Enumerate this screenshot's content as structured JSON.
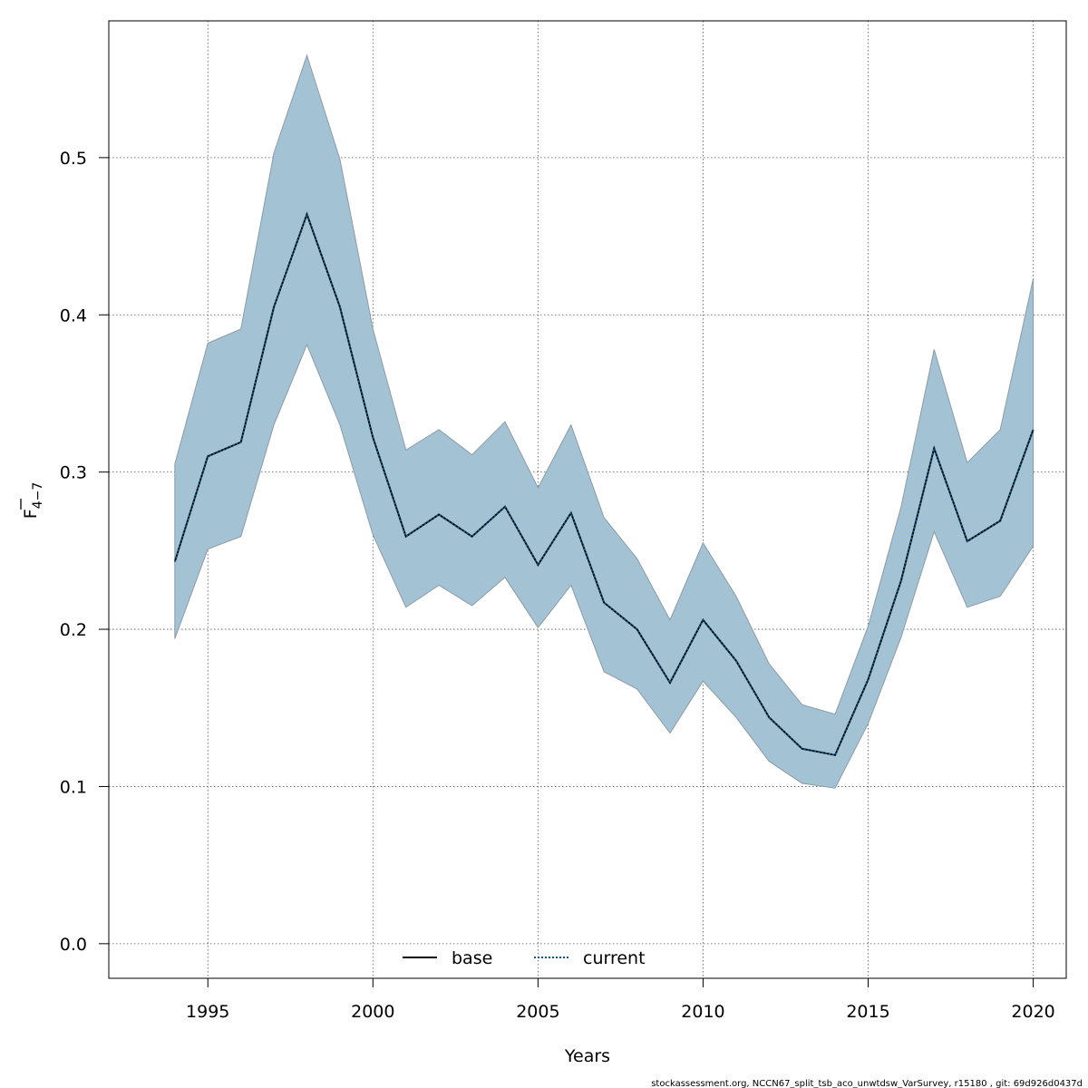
{
  "chart_data": {
    "type": "line",
    "xlabel": "Years",
    "ylabel": "F",
    "ylabel_subscript": "4−7",
    "xlim": [
      1992.0,
      2021.0
    ],
    "ylim": [
      -0.022,
      0.587
    ],
    "x_ticks": [
      1995,
      2000,
      2005,
      2010,
      2015,
      2020
    ],
    "y_ticks": [
      0.0,
      0.1,
      0.2,
      0.3,
      0.4,
      0.5
    ],
    "y_tick_labels": [
      "0.0",
      "0.1",
      "0.2",
      "0.3",
      "0.4",
      "0.5"
    ],
    "grid": true,
    "legend_position": "bottom",
    "x": [
      1994,
      1995,
      1996,
      1997,
      1998,
      1999,
      2000,
      2001,
      2002,
      2003,
      2004,
      2005,
      2006,
      2007,
      2008,
      2009,
      2010,
      2011,
      2012,
      2013,
      2014,
      2015,
      2016,
      2017,
      2018,
      2019,
      2020
    ],
    "band": {
      "color": "#a3c3d5",
      "edge_color": "#8a9ba6",
      "upper": [
        0.305,
        0.382,
        0.391,
        0.503,
        0.565,
        0.499,
        0.391,
        0.314,
        0.327,
        0.311,
        0.332,
        0.29,
        0.33,
        0.271,
        0.245,
        0.206,
        0.255,
        0.221,
        0.178,
        0.152,
        0.146,
        0.202,
        0.278,
        0.378,
        0.306,
        0.327,
        0.423
      ],
      "lower": [
        0.194,
        0.251,
        0.259,
        0.33,
        0.381,
        0.33,
        0.26,
        0.214,
        0.228,
        0.215,
        0.233,
        0.201,
        0.228,
        0.173,
        0.162,
        0.134,
        0.167,
        0.144,
        0.116,
        0.102,
        0.099,
        0.14,
        0.195,
        0.262,
        0.214,
        0.221,
        0.253
      ]
    },
    "series": [
      {
        "name": "base",
        "style": "solid",
        "color": "#000000",
        "values": [
          0.243,
          0.31,
          0.319,
          0.405,
          0.464,
          0.405,
          0.322,
          0.259,
          0.273,
          0.259,
          0.278,
          0.241,
          0.274,
          0.217,
          0.2,
          0.166,
          0.206,
          0.18,
          0.144,
          0.124,
          0.12,
          0.168,
          0.231,
          0.315,
          0.256,
          0.269,
          0.327
        ]
      },
      {
        "name": "current",
        "style": "dotted",
        "color": "#0a5a8a",
        "values": [
          0.243,
          0.31,
          0.319,
          0.405,
          0.464,
          0.405,
          0.322,
          0.259,
          0.273,
          0.259,
          0.278,
          0.241,
          0.274,
          0.217,
          0.2,
          0.166,
          0.206,
          0.18,
          0.144,
          0.124,
          0.12,
          0.168,
          0.231,
          0.315,
          0.256,
          0.269,
          0.327
        ]
      }
    ]
  },
  "legend": {
    "base_label": "base",
    "current_label": "current"
  },
  "footer": {
    "text": "stockassessment.org, NCCN67_split_tsb_aco_unwtdsw_VarSurvey, r15180 , git: 69d926d0437d"
  }
}
